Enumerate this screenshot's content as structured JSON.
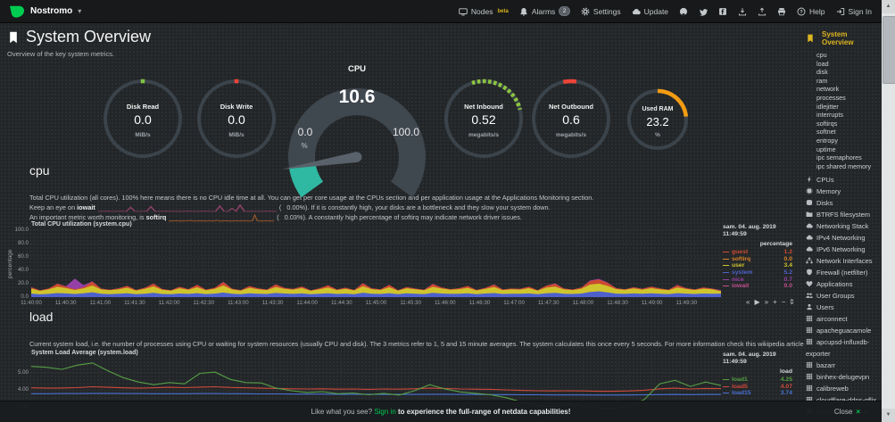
{
  "navbar": {
    "hostname": "Nostromo",
    "caret": "▾",
    "items": [
      {
        "id": "nodes",
        "icon": "monitor",
        "label": "Nodes",
        "beta": "beta"
      },
      {
        "id": "alarms",
        "icon": "bell",
        "label": "Alarms",
        "badge": "2"
      },
      {
        "id": "settings",
        "icon": "gear",
        "label": "Settings"
      },
      {
        "id": "update",
        "icon": "cloud",
        "label": "Update"
      },
      {
        "id": "github",
        "icon": "github"
      },
      {
        "id": "twitter",
        "icon": "twitter"
      },
      {
        "id": "facebook",
        "icon": "facebook"
      },
      {
        "id": "import",
        "icon": "download"
      },
      {
        "id": "export",
        "icon": "upload"
      },
      {
        "id": "print",
        "icon": "print"
      },
      {
        "id": "help",
        "icon": "help",
        "label": "Help"
      },
      {
        "id": "signin",
        "icon": "signin",
        "label": "Sign In"
      }
    ]
  },
  "header": {
    "title": "System Overview",
    "subtitle": "Overview of the key system metrics."
  },
  "gauges": {
    "disk_read": {
      "title": "Disk Read",
      "value": "0.0",
      "unit": "MiB/s",
      "arc_color": "#7dc242",
      "arc_start": -3,
      "arc_end": 3
    },
    "disk_write": {
      "title": "Disk Write",
      "value": "0.0",
      "unit": "MiB/s",
      "arc_color": "#ef4438",
      "arc_start": -3,
      "arc_end": 3
    },
    "cpu": {
      "title": "CPU",
      "value": "10.6",
      "min": "0.0",
      "max": "100.0",
      "unit": "%",
      "fraction": 0.106,
      "fill_color": "#2fb8a2"
    },
    "net_inbound": {
      "title": "Net Inbound",
      "value": "0.52",
      "unit": "megabits/s",
      "arc_color": "#8dc63f",
      "arc_start": -18,
      "arc_end": 76,
      "dashed": true
    },
    "net_outbound": {
      "title": "Net Outbound",
      "value": "0.6",
      "unit": "megabits/s",
      "arc_color": "#ef4438",
      "arc_start": -12,
      "arc_end": 8
    },
    "used_ram": {
      "title": "Used RAM",
      "value": "23.2",
      "unit": "%",
      "arc_color": "#f39c12",
      "arc_start": 0,
      "arc_end": 84
    }
  },
  "cpu_section": {
    "heading": "cpu",
    "line1": "Total CPU utilization (all cores). 100% here means there is no CPU idle time at all. You can get per core usage at the CPUs section and per application usage at the Applications Monitoring section.",
    "line2_before": "Keep an eye on ",
    "line2_bold": "iowait",
    "line2_value": "(   0.00%).",
    "line2_after": " If it is constantly high, your disks are a bottleneck and they slow your system down.",
    "line3_before": "An important metric worth monitoring, is ",
    "line3_bold": "softirq",
    "line3_value": "(   0.03%).",
    "line3_after": " A constantly high percentage of softirq may indicate network driver issues."
  },
  "load_section": {
    "heading": "load",
    "line1_before": "Current system load, i.e. the number of processes using CPU or waiting for system resources (usually CPU and disk). The 3 metrics refer to 1, 5 and 15 minute averages. The system calculates this once every 5 seconds. For more information check ",
    "line1_link": "this wikipedia article"
  },
  "toolbox": {
    "buttons": [
      "«",
      "▶",
      "»",
      "+",
      "−"
    ],
    "resize": "⇕"
  },
  "footer": {
    "prefix": "Like what you see? ",
    "signin": "Sign in",
    "suffix": " to experience the full-range of netdata capabilities!",
    "close_label": "Close",
    "close_icon": "×"
  },
  "sidebar": {
    "active": "System Overview",
    "submenu": [
      "cpu",
      "load",
      "disk",
      "ram",
      "network",
      "processes",
      "idlejitter",
      "interrupts",
      "softirqs",
      "softnet",
      "entropy",
      "uptime",
      "ipc semaphores",
      "ipc shared memory"
    ],
    "sections": [
      {
        "label": "CPUs",
        "icon": "bolt"
      },
      {
        "label": "Memory",
        "icon": "microchip"
      },
      {
        "label": "Disks",
        "icon": "hdd"
      },
      {
        "label": "BTRFS filesystem",
        "icon": "folder"
      },
      {
        "label": "Networking Stack",
        "icon": "cloud"
      },
      {
        "label": "IPv4 Networking",
        "icon": "cloud"
      },
      {
        "label": "IPv6 Networking",
        "icon": "cloud"
      },
      {
        "label": "Network Interfaces",
        "icon": "sitemap"
      },
      {
        "label": "Firewall (netfilter)",
        "icon": "shield"
      },
      {
        "label": "Applications",
        "icon": "heartbeat"
      },
      {
        "label": "User Groups",
        "icon": "users"
      },
      {
        "label": "Users",
        "icon": "user"
      }
    ],
    "apps": [
      {
        "label": "airconnect",
        "icon": "grid"
      },
      {
        "label": "apacheguacamole",
        "icon": "grid"
      },
      {
        "label": "apcupsd-influxdb-exporter",
        "icon": "grid"
      },
      {
        "label": "bazarr",
        "icon": "grid"
      },
      {
        "label": "binhex-delugevpn",
        "icon": "grid"
      },
      {
        "label": "calibreweb",
        "icon": "grid"
      },
      {
        "label": "cloudflare-ddns-gflix",
        "icon": "grid"
      },
      {
        "label": "cloudflare-ddns-tr",
        "icon": "grid"
      }
    ]
  },
  "chart_data": [
    {
      "id": "cpu_chart",
      "type": "area",
      "stacked": true,
      "title": "Total CPU utilization (system.cpu)",
      "ylabel": "percentage",
      "unit": "percentage",
      "ylim": [
        0,
        100
      ],
      "grid": true,
      "legend_position": "right",
      "legend_date": "sam. 04. aug. 2019",
      "legend_time": "11:49:59",
      "yticks": [
        "100.0",
        "80.0",
        "60.0",
        "40.0",
        "20.0",
        "0.0"
      ],
      "ytick_values": [
        100,
        80,
        60,
        40,
        20,
        0
      ],
      "xticks": [
        "11:40:00",
        "11:40:30",
        "11:41:00",
        "11:41:30",
        "11:42:00",
        "11:42:30",
        "11:43:00",
        "11:43:30",
        "11:44:00",
        "11:44:30",
        "11:45:00",
        "11:45:30",
        "11:46:00",
        "11:46:30",
        "11:47:00",
        "11:47:30",
        "11:48:00",
        "11:48:30",
        "11:49:00",
        "11:49:30"
      ],
      "legend": [
        {
          "name": "guest",
          "value": "1.2",
          "color": "#cc4a30"
        },
        {
          "name": "softirq",
          "value": "0.0",
          "color": "#d9822b"
        },
        {
          "name": "user",
          "value": "3.4",
          "color": "#cfc42d"
        },
        {
          "name": "system",
          "value": "5.2",
          "color": "#4d60cc"
        },
        {
          "name": "nice",
          "value": "0.7",
          "color": "#9540a5"
        },
        {
          "name": "iowait",
          "value": "0.0",
          "color": "#c2508e"
        }
      ],
      "series": [
        {
          "name": "system",
          "color": "#4d60cc",
          "values": [
            5.2,
            4.1,
            4.8,
            6.0,
            5.5,
            4.6,
            5.8,
            7.2,
            5.0,
            4.4,
            4.9,
            5.6,
            4.3,
            5.1,
            6.2,
            4.7,
            4.2,
            5.4,
            4.8,
            5.9,
            4.5,
            5.2,
            6.8,
            4.9,
            4.3,
            5.7,
            5.0,
            4.6,
            6.1,
            5.3,
            4.8,
            5.5,
            4.2,
            5.0,
            5.8,
            4.6,
            5.2,
            4.4,
            6.5,
            5.1,
            4.7,
            5.9,
            4.3,
            5.6,
            5.0,
            4.5,
            6.2,
            5.4,
            4.8,
            5.1,
            5.7,
            4.4,
            5.3,
            6.0,
            4.6,
            5.0,
            4.9,
            5.5,
            4.3,
            5.8,
            6.4,
            5.0,
            4.6,
            5.3,
            7.8,
            8.6,
            7.0,
            5.2,
            4.8,
            5.5,
            4.9,
            5.6,
            5.1,
            4.5,
            5.9,
            5.2,
            4.7,
            5.4,
            5.0,
            5.2
          ]
        },
        {
          "name": "user",
          "color": "#cfc42d",
          "values": [
            7.5,
            5.2,
            6.8,
            9.5,
            8.0,
            6.1,
            7.4,
            10.2,
            6.5,
            5.8,
            6.9,
            8.4,
            5.6,
            7.2,
            9.8,
            6.3,
            5.4,
            7.8,
            6.2,
            8.8,
            5.9,
            7.0,
            10.5,
            6.6,
            5.5,
            8.2,
            6.8,
            5.9,
            9.0,
            7.1,
            6.4,
            8.0,
            5.3,
            6.8,
            8.6,
            5.9,
            7.2,
            5.6,
            9.6,
            6.8,
            6.0,
            8.8,
            5.4,
            7.6,
            6.6,
            5.8,
            9.2,
            7.4,
            6.2,
            6.8,
            8.2,
            5.6,
            7.0,
            9.0,
            5.9,
            6.6,
            6.3,
            7.8,
            5.4,
            8.4,
            9.4,
            6.6,
            5.9,
            7.2,
            10.8,
            11.6,
            9.8,
            6.8,
            6.1,
            7.4,
            6.3,
            7.8,
            6.7,
            5.7,
            8.6,
            6.9,
            6.0,
            7.3,
            6.6,
            3.4
          ]
        },
        {
          "name": "guest",
          "color": "#cc4a30",
          "values": [
            2.0,
            0.8,
            1.2,
            4.5,
            2.2,
            0.9,
            1.5,
            5.8,
            1.1,
            0.7,
            1.3,
            2.8,
            0.8,
            1.6,
            4.2,
            1.0,
            0.6,
            2.2,
            0.9,
            3.5,
            0.8,
            1.4,
            5.2,
            1.0,
            0.7,
            2.6,
            1.2,
            0.8,
            3.8,
            1.4,
            0.9,
            2.4,
            0.6,
            1.3,
            3.2,
            0.8,
            1.6,
            0.7,
            4.4,
            1.2,
            0.9,
            3.6,
            0.6,
            1.8,
            1.1,
            0.8,
            4.0,
            1.6,
            0.9,
            1.3,
            2.8,
            0.7,
            1.4,
            3.6,
            0.8,
            1.2,
            1.0,
            2.2,
            0.6,
            3.0,
            4.2,
            1.2,
            0.8,
            1.6,
            5.4,
            6.2,
            4.6,
            1.3,
            0.9,
            1.8,
            1.0,
            2.4,
            1.2,
            0.7,
            3.4,
            1.3,
            0.8,
            1.7,
            1.1,
            1.2
          ]
        },
        {
          "name": "nice",
          "color": "#9540a5",
          "values": [
            0,
            0,
            0,
            0,
            0.6,
            16.0,
            3.2,
            0.4,
            0,
            0,
            0,
            0,
            0,
            0,
            0,
            0,
            0,
            0,
            0,
            0,
            0,
            0,
            0.5,
            0,
            0,
            0,
            0,
            0,
            0,
            0,
            0,
            0,
            0,
            0,
            0,
            0,
            0,
            0,
            0.4,
            0,
            0,
            0,
            0,
            0,
            0,
            0,
            0.5,
            0,
            0,
            0,
            0,
            0,
            0,
            0.4,
            0,
            0,
            0,
            0,
            0,
            0,
            0.6,
            0,
            0,
            0,
            0.8,
            1.0,
            0.6,
            0,
            0,
            0,
            0,
            0,
            0,
            0,
            0.5,
            0,
            0,
            0,
            0,
            0.7
          ]
        }
      ]
    },
    {
      "id": "load_chart",
      "type": "line",
      "title": "System Load Average (system.load)",
      "unit": "load",
      "grid": true,
      "legend_position": "right",
      "legend_date": "sam. 04. aug. 2019",
      "legend_time": "11:49:59",
      "yticks": [
        "5.00",
        "4.00",
        "3.00"
      ],
      "ytick_values": [
        5,
        4,
        3
      ],
      "legend": [
        {
          "name": "load1",
          "value": "4.25",
          "color": "#56a046"
        },
        {
          "name": "load5",
          "value": "4.07",
          "color": "#cf4a3c"
        },
        {
          "name": "load15",
          "value": "3.74",
          "color": "#4a72d8"
        }
      ],
      "series": [
        {
          "name": "load15",
          "color": "#4a72d8",
          "values": [
            3.78,
            3.78,
            3.79,
            3.79,
            3.8,
            3.8,
            3.79,
            3.79,
            3.78,
            3.78,
            3.78,
            3.79,
            3.79,
            3.78,
            3.78,
            3.77,
            3.77,
            3.76,
            3.76,
            3.76,
            3.75,
            3.75,
            3.75,
            3.74,
            3.74,
            3.74,
            3.75,
            3.75,
            3.74,
            3.74,
            3.73,
            3.73,
            3.72,
            3.72,
            3.71,
            3.71,
            3.71,
            3.7,
            3.7,
            3.71,
            3.72,
            3.73,
            3.74,
            3.73,
            3.74,
            3.74
          ]
        },
        {
          "name": "load5",
          "color": "#cf4a3c",
          "values": [
            4.12,
            4.1,
            4.11,
            4.13,
            4.18,
            4.15,
            4.12,
            4.1,
            4.12,
            4.15,
            4.13,
            4.16,
            4.18,
            4.14,
            4.12,
            4.1,
            4.08,
            4.06,
            4.05,
            4.06,
            4.04,
            4.05,
            4.03,
            4.05,
            4.04,
            4.06,
            4.1,
            4.08,
            4.05,
            4.04,
            4.03,
            4.0,
            3.97,
            3.95,
            3.94,
            3.95,
            3.94,
            3.92,
            3.92,
            3.94,
            3.98,
            4.06,
            4.1,
            4.05,
            4.08,
            4.07
          ]
        },
        {
          "name": "load1",
          "color": "#56a046",
          "values": [
            5.35,
            5.3,
            5.18,
            5.42,
            5.55,
            5.1,
            4.7,
            4.45,
            4.3,
            4.42,
            4.35,
            4.95,
            5.02,
            4.6,
            4.42,
            4.4,
            4.1,
            3.95,
            3.85,
            3.9,
            3.78,
            3.82,
            3.72,
            3.8,
            3.7,
            3.95,
            4.3,
            4.05,
            3.88,
            3.8,
            3.72,
            3.55,
            3.3,
            3.12,
            3.02,
            3.18,
            3.08,
            2.95,
            2.92,
            3.05,
            3.45,
            4.35,
            4.55,
            4.2,
            4.45,
            4.25
          ]
        }
      ]
    },
    {
      "id": "iowait_sparkline",
      "type": "line",
      "color": "#8c4068",
      "values": [
        0.3,
        0.2,
        0.4,
        0.3,
        0.2,
        0.3,
        0.4,
        0.2,
        4.0,
        0.3,
        0.2,
        0.3,
        0.4,
        4.6,
        0.3,
        0.2,
        0.3,
        0.4,
        0.3,
        0.2,
        0.3,
        0.2,
        0.4,
        0.3,
        0.2,
        0.3,
        0.4,
        0.3,
        0.2,
        0.3,
        5.2,
        0.3,
        0.2,
        2.9,
        0.4,
        6.0,
        0.3,
        0.2,
        0.4,
        0.3,
        0.2,
        0.3,
        0.4,
        0.3,
        0.2
      ]
    },
    {
      "id": "softirq_sparkline",
      "type": "line",
      "color": "#a85c28",
      "values": [
        0.3,
        0.2,
        0.3,
        0.4,
        0.3,
        0.2,
        0.3,
        0.3,
        0.4,
        0.8,
        0.3,
        0.2,
        0.3,
        0.4,
        0.3,
        0.3,
        0.2,
        0.4,
        0.3,
        0.2,
        0.9,
        0.3,
        0.2,
        0.3,
        0.4,
        0.3,
        0.2,
        0.3,
        0.4,
        0.3,
        0.2,
        0.3,
        0.4,
        0.3,
        0.2,
        0.3,
        5.0,
        0.4,
        0.3,
        0.2,
        0.3,
        0.4,
        0.3,
        0.2,
        0.3
      ]
    }
  ]
}
